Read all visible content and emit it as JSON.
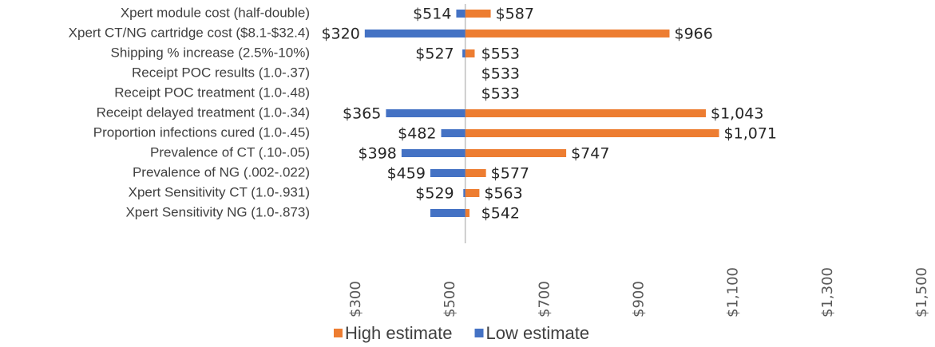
{
  "chart_data": {
    "type": "tornado",
    "categories": [
      "Xpert module cost (half-double)",
      "Xpert CT/NG cartridge cost ($8.1-$32.4)",
      "Shipping % increase (2.5%-10%)",
      "Receipt POC results (1.0-.37)",
      "Receipt POC treatment (1.0-.48)",
      "Receipt delayed treatment (1.0-.34)",
      "Proportion infections cured (1.0-.45)",
      "Prevalence of CT (.10-.05)",
      "Prevalence of NG (.002-.022)",
      "Xpert Sensitivity CT (1.0-.931)",
      "Xpert Sensitivity NG (1.0-.873)"
    ],
    "base": 533,
    "series": [
      {
        "name": "High estimate",
        "color": "#ed7d31",
        "values": [
          587,
          966,
          553,
          533,
          533,
          1043,
          1071,
          747,
          577,
          563,
          542
        ],
        "value_labels": [
          "$587",
          "$966",
          "$553",
          "$533",
          "$533",
          "$1,043",
          "$1,071",
          "$747",
          "$577",
          "$563",
          "$542"
        ]
      },
      {
        "name": "Low estimate",
        "color": "#4472c4",
        "values": [
          514,
          320,
          527,
          533,
          533,
          365,
          482,
          398,
          459,
          529,
          459
        ],
        "value_labels": [
          "$514",
          "$320",
          "$527",
          null,
          null,
          "$365",
          "$482",
          "$398",
          "$459",
          "$529",
          null
        ]
      }
    ],
    "xlim": [
      300,
      1500
    ],
    "xticks": [
      {
        "value": 300,
        "label": "$300"
      },
      {
        "value": 500,
        "label": "$500"
      },
      {
        "value": 700,
        "label": "$700"
      },
      {
        "value": 900,
        "label": "$900"
      },
      {
        "value": 1100,
        "label": "$1,100"
      },
      {
        "value": 1300,
        "label": "$1,300"
      },
      {
        "value": 1500,
        "label": "$1,500"
      }
    ]
  }
}
